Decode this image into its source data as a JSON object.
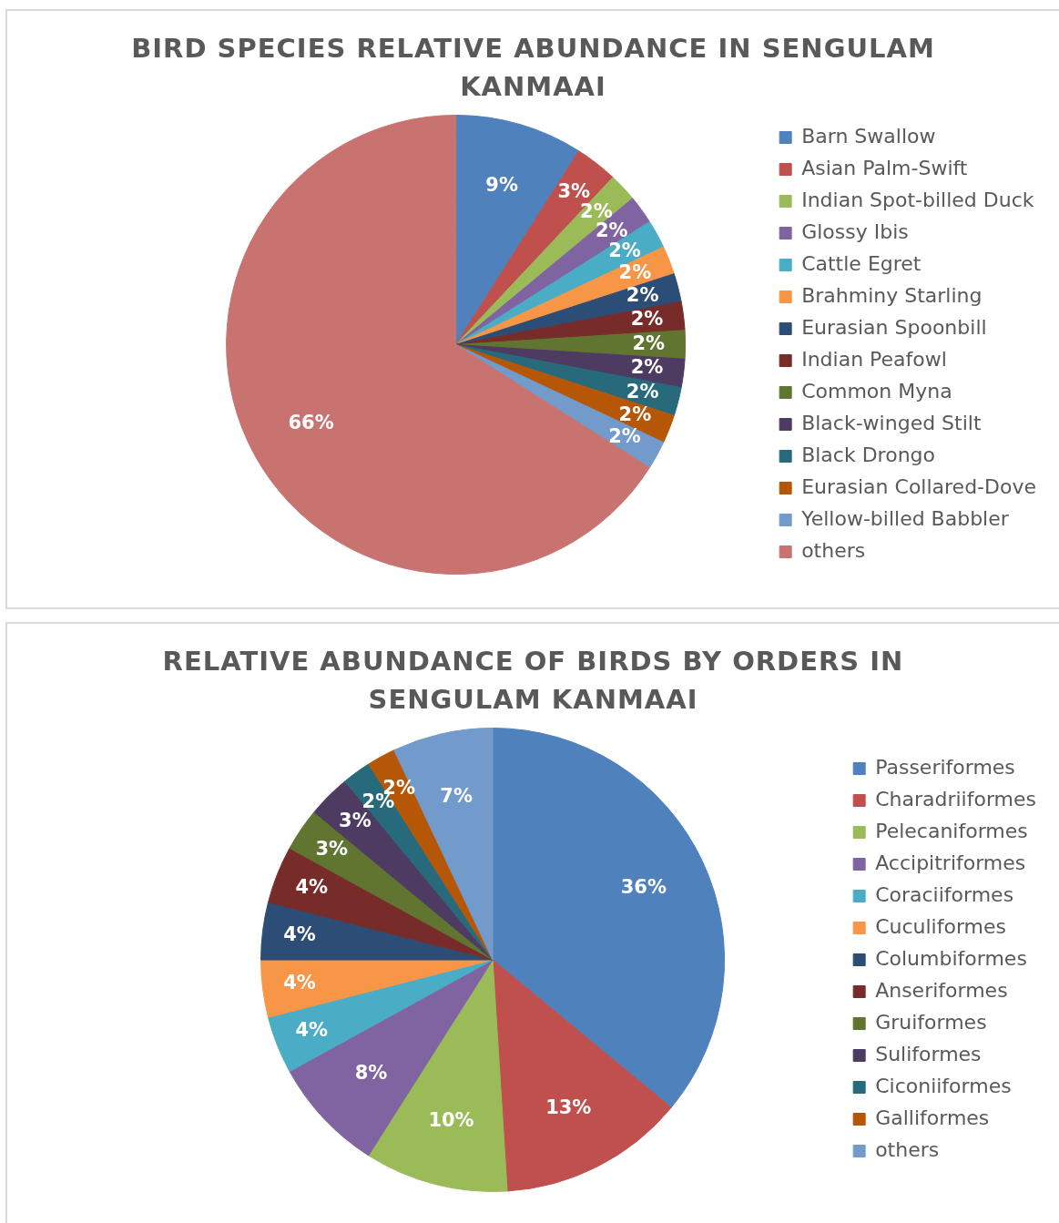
{
  "chart_data": [
    {
      "type": "pie",
      "title": "BIRD SPECIES RELATIVE ABUNDANCE IN SENGULAM KANMAAI",
      "categories": [
        "Barn Swallow",
        "Asian Palm-Swift",
        "Indian Spot-billed Duck",
        "Glossy Ibis",
        "Cattle Egret",
        "Brahminy Starling",
        "Eurasian Spoonbill",
        "Indian Peafowl",
        "Common Myna",
        "Black-winged Stilt",
        "Black Drongo",
        "Eurasian Collared-Dove",
        "Yellow-billed Babbler",
        "others"
      ],
      "values": [
        9,
        3,
        2,
        2,
        2,
        2,
        2,
        2,
        2,
        2,
        2,
        2,
        2,
        66
      ],
      "colors": [
        "#4f81bd",
        "#c0504d",
        "#9bbb59",
        "#8064a2",
        "#4bacc6",
        "#f79646",
        "#2c4d75",
        "#772c2a",
        "#5f7530",
        "#4d3b62",
        "#276a7c",
        "#b65708",
        "#729aca",
        "#c97370"
      ],
      "value_labels": [
        "9%",
        "3%",
        "2%",
        "2%",
        "2%",
        "2%",
        "2%",
        "2%",
        "2%",
        "2%",
        "2%",
        "2%",
        "2%",
        "66%"
      ],
      "legend": "right"
    },
    {
      "type": "pie",
      "title": "RELATIVE ABUNDANCE OF BIRDS BY ORDERS IN SENGULAM KANMAAI",
      "categories": [
        "Passeriformes",
        "Charadriiformes",
        "Pelecaniformes",
        "Accipitriformes",
        "Coraciiformes",
        "Cuculiformes",
        "Columbiformes",
        "Anseriformes",
        "Gruiformes",
        "Suliformes",
        "Ciconiiformes",
        "Galliformes",
        "others"
      ],
      "values": [
        36,
        13,
        10,
        8,
        4,
        4,
        4,
        4,
        3,
        3,
        2,
        2,
        7
      ],
      "colors": [
        "#4f81bd",
        "#c0504d",
        "#9bbb59",
        "#8064a2",
        "#4bacc6",
        "#f79646",
        "#2c4d75",
        "#772c2a",
        "#5f7530",
        "#4d3b62",
        "#276a7c",
        "#b65708",
        "#729aca"
      ],
      "value_labels": [
        "36%",
        "13%",
        "10%",
        "8%",
        "4%",
        "4%",
        "4%",
        "4%",
        "3%",
        "3%",
        "2%",
        "2%",
        "7%"
      ],
      "legend": "right"
    }
  ]
}
